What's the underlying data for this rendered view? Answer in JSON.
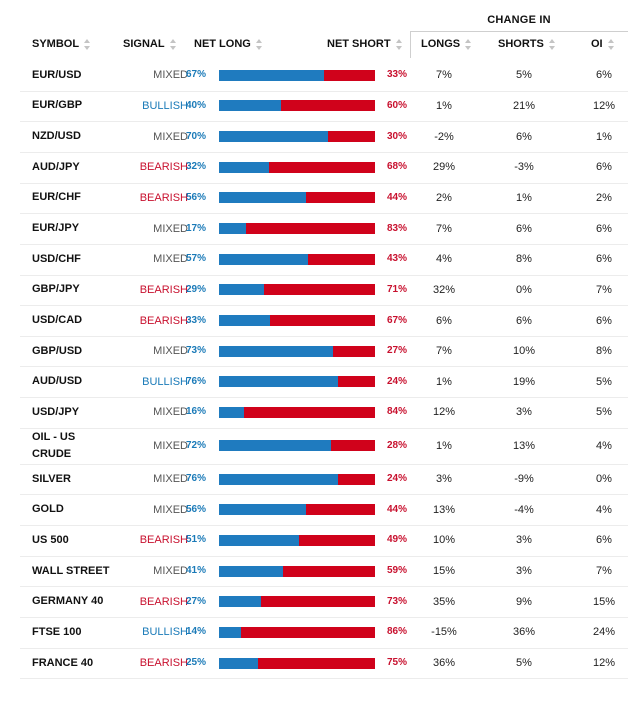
{
  "header": {
    "group_label": "CHANGE IN",
    "symbol": "SYMBOL",
    "signal": "SIGNAL",
    "net_long": "NET LONG",
    "net_short": "NET SHORT",
    "longs": "LONGS",
    "shorts": "SHORTS",
    "oi": "OI"
  },
  "rows": [
    {
      "symbol": "EUR/USD",
      "signal": "MIXED",
      "net_long": "67%",
      "net_short": "33%",
      "long_fraction": 0.67,
      "change_longs": "7%",
      "change_shorts": "5%",
      "change_oi": "6%"
    },
    {
      "symbol": "EUR/GBP",
      "signal": "BULLISH",
      "net_long": "40%",
      "net_short": "60%",
      "long_fraction": 0.4,
      "change_longs": "1%",
      "change_shorts": "21%",
      "change_oi": "12%"
    },
    {
      "symbol": "NZD/USD",
      "signal": "MIXED",
      "net_long": "70%",
      "net_short": "30%",
      "long_fraction": 0.7,
      "change_longs": "-2%",
      "change_shorts": "6%",
      "change_oi": "1%"
    },
    {
      "symbol": "AUD/JPY",
      "signal": "BEARISH",
      "net_long": "32%",
      "net_short": "68%",
      "long_fraction": 0.32,
      "change_longs": "29%",
      "change_shorts": "-3%",
      "change_oi": "6%"
    },
    {
      "symbol": "EUR/CHF",
      "signal": "BEARISH",
      "net_long": "56%",
      "net_short": "44%",
      "long_fraction": 0.56,
      "change_longs": "2%",
      "change_shorts": "1%",
      "change_oi": "2%"
    },
    {
      "symbol": "EUR/JPY",
      "signal": "MIXED",
      "net_long": "17%",
      "net_short": "83%",
      "long_fraction": 0.17,
      "change_longs": "7%",
      "change_shorts": "6%",
      "change_oi": "6%"
    },
    {
      "symbol": "USD/CHF",
      "signal": "MIXED",
      "net_long": "57%",
      "net_short": "43%",
      "long_fraction": 0.57,
      "change_longs": "4%",
      "change_shorts": "8%",
      "change_oi": "6%"
    },
    {
      "symbol": "GBP/JPY",
      "signal": "BEARISH",
      "net_long": "29%",
      "net_short": "71%",
      "long_fraction": 0.29,
      "change_longs": "32%",
      "change_shorts": "0%",
      "change_oi": "7%"
    },
    {
      "symbol": "USD/CAD",
      "signal": "BEARISH",
      "net_long": "33%",
      "net_short": "67%",
      "long_fraction": 0.33,
      "change_longs": "6%",
      "change_shorts": "6%",
      "change_oi": "6%"
    },
    {
      "symbol": "GBP/USD",
      "signal": "MIXED",
      "net_long": "73%",
      "net_short": "27%",
      "long_fraction": 0.73,
      "change_longs": "7%",
      "change_shorts": "10%",
      "change_oi": "8%"
    },
    {
      "symbol": "AUD/USD",
      "signal": "BULLISH",
      "net_long": "76%",
      "net_short": "24%",
      "long_fraction": 0.76,
      "change_longs": "1%",
      "change_shorts": "19%",
      "change_oi": "5%"
    },
    {
      "symbol": "USD/JPY",
      "signal": "MIXED",
      "net_long": "16%",
      "net_short": "84%",
      "long_fraction": 0.16,
      "change_longs": "12%",
      "change_shorts": "3%",
      "change_oi": "5%"
    },
    {
      "symbol": "OIL - US\nCRUDE",
      "signal": "MIXED",
      "net_long": "72%",
      "net_short": "28%",
      "long_fraction": 0.72,
      "change_longs": "1%",
      "change_shorts": "13%",
      "change_oi": "4%"
    },
    {
      "symbol": "SILVER",
      "signal": "MIXED",
      "net_long": "76%",
      "net_short": "24%",
      "long_fraction": 0.76,
      "change_longs": "3%",
      "change_shorts": "-9%",
      "change_oi": "0%"
    },
    {
      "symbol": "GOLD",
      "signal": "MIXED",
      "net_long": "56%",
      "net_short": "44%",
      "long_fraction": 0.56,
      "change_longs": "13%",
      "change_shorts": "-4%",
      "change_oi": "4%"
    },
    {
      "symbol": "US 500",
      "signal": "BEARISH",
      "net_long": "51%",
      "net_short": "49%",
      "long_fraction": 0.51,
      "change_longs": "10%",
      "change_shorts": "3%",
      "change_oi": "6%"
    },
    {
      "symbol": "WALL STREET",
      "signal": "MIXED",
      "net_long": "41%",
      "net_short": "59%",
      "long_fraction": 0.41,
      "change_longs": "15%",
      "change_shorts": "3%",
      "change_oi": "7%"
    },
    {
      "symbol": "GERMANY 40",
      "signal": "BEARISH",
      "net_long": "27%",
      "net_short": "73%",
      "long_fraction": 0.27,
      "change_longs": "35%",
      "change_shorts": "9%",
      "change_oi": "15%"
    },
    {
      "symbol": "FTSE 100",
      "signal": "BULLISH",
      "net_long": "14%",
      "net_short": "86%",
      "long_fraction": 0.14,
      "change_longs": "-15%",
      "change_shorts": "36%",
      "change_oi": "24%"
    },
    {
      "symbol": "FRANCE 40",
      "signal": "BEARISH",
      "net_long": "25%",
      "net_short": "75%",
      "long_fraction": 0.25,
      "change_longs": "36%",
      "change_shorts": "5%",
      "change_oi": "12%"
    }
  ],
  "colors": {
    "long_bar": "#1f7bbf",
    "short_bar": "#d0021b",
    "bullish": "#1a7ab8",
    "bearish": "#c8102e",
    "mixed": "#555555"
  }
}
